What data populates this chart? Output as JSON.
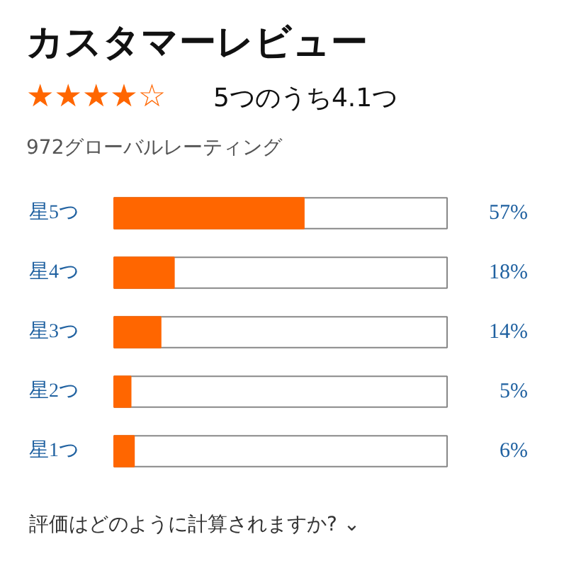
{
  "chart_data": {
    "type": "bar",
    "orientation": "horizontal",
    "title": "カスタマーレビュー",
    "subtitle": "5つのうち4.1つ",
    "annotations": [
      "★★★★☆",
      "972グローバルレーティング",
      "評価はどのように計算されますか? ⌄"
    ],
    "categories": [
      "星5つ",
      "星4つ",
      "星3つ",
      "星2つ",
      "星1つ"
    ],
    "values": [
      57,
      18,
      14,
      5,
      6
    ],
    "color": "#ff6600",
    "value_labels": [
      "57%",
      "18%",
      "14%",
      "5%",
      "6%"
    ],
    "xlim": [
      0,
      100
    ],
    "grid": false
  }
}
